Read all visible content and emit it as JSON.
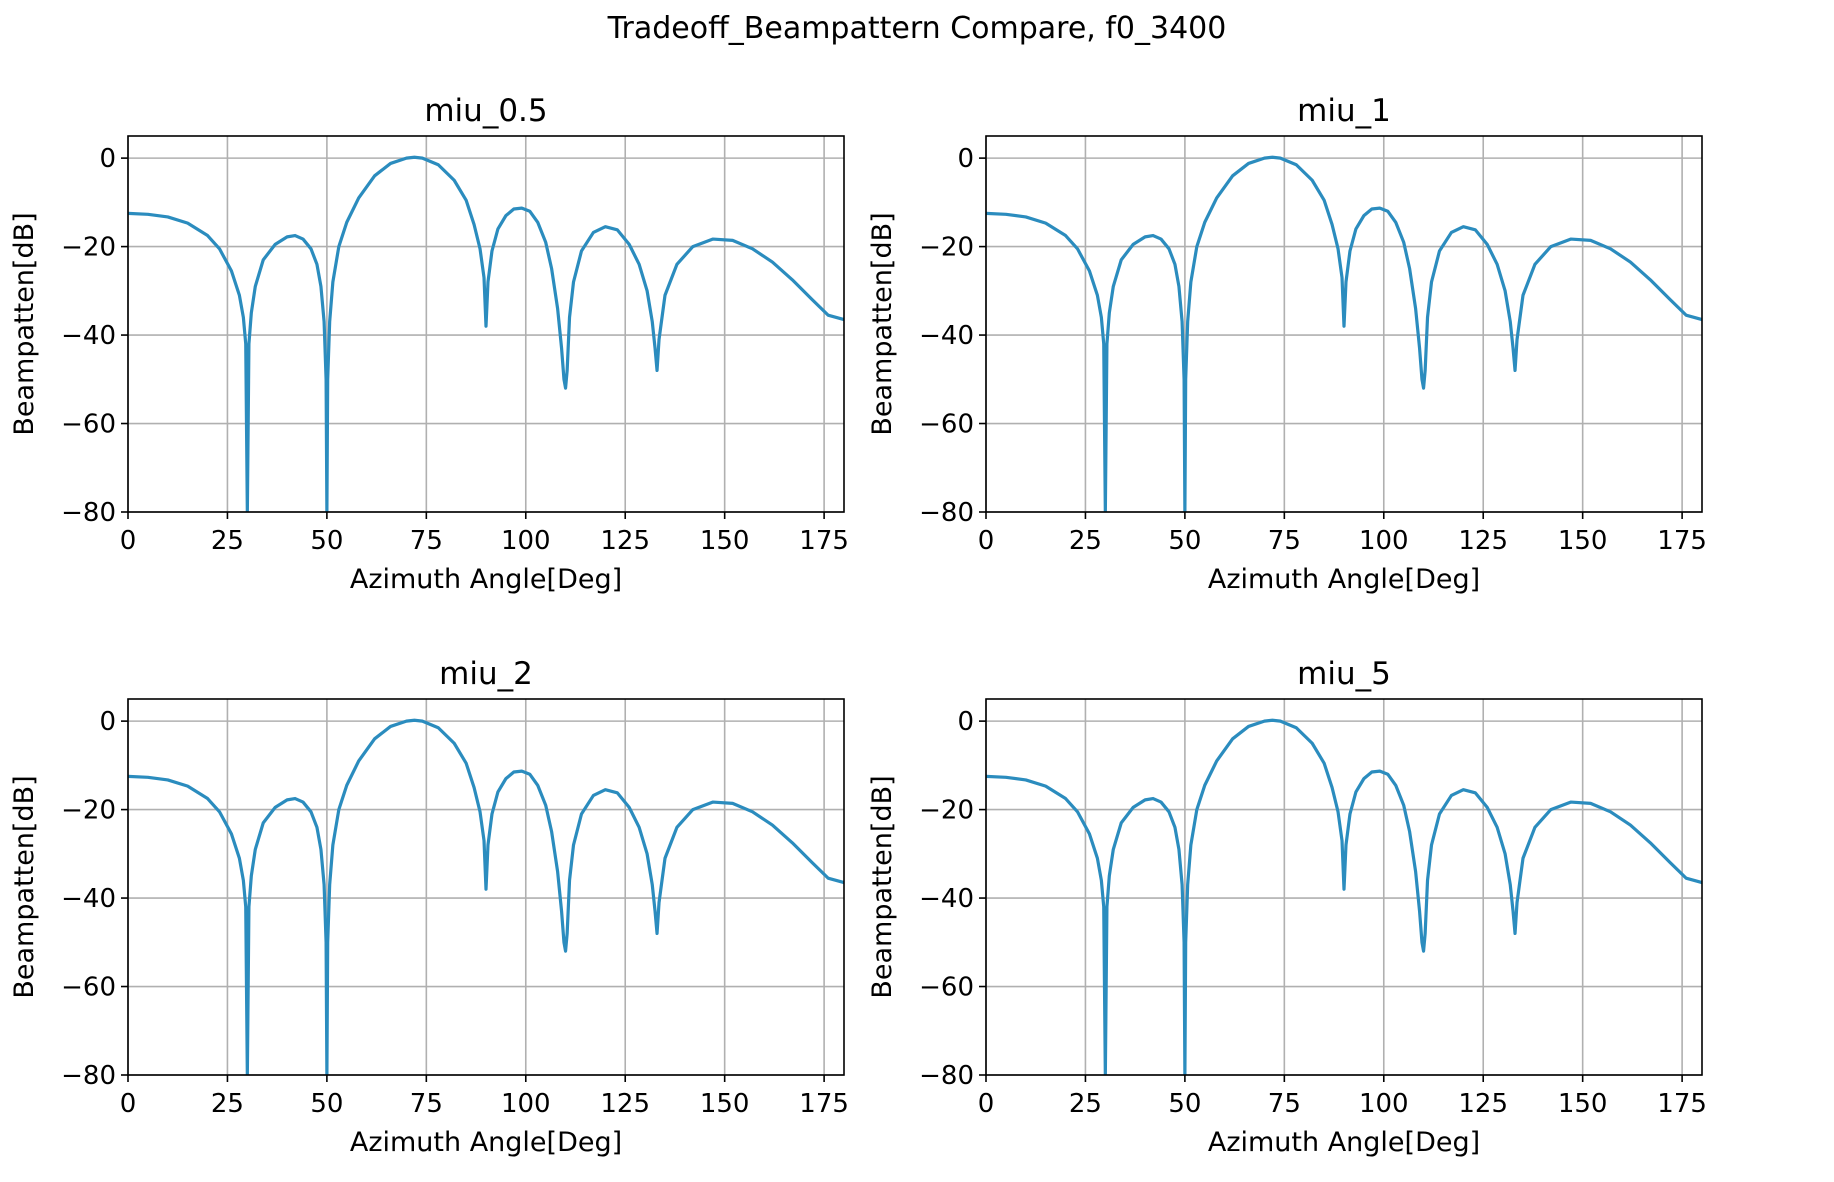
{
  "figure": {
    "title": "Tradeoff_Beampattern Compare, f0_3400"
  },
  "colors": {
    "line": "#2b8cbe",
    "grid": "#b0b0b0",
    "axes": "#000000"
  },
  "chart_data": [
    {
      "type": "line",
      "title": "miu_0.5",
      "xlabel": "Azimuth Angle[Deg]",
      "ylabel": "Beampatten[dB]",
      "xlim": [
        0,
        180
      ],
      "ylim": [
        -80,
        5
      ],
      "xticks": [
        0,
        25,
        50,
        75,
        100,
        125,
        150,
        175
      ],
      "yticks": [
        0,
        -20,
        -40,
        -60,
        -80
      ],
      "grid": true,
      "series": [
        {
          "x": [
            0,
            5,
            10,
            15,
            20,
            23,
            26,
            28,
            29,
            29.6,
            30,
            30.4,
            31,
            32,
            34,
            37,
            40,
            42,
            44,
            46,
            47.5,
            48.5,
            49.3,
            49.8,
            50,
            50.2,
            50.7,
            51.5,
            53,
            55,
            58,
            62,
            66,
            70,
            72,
            74,
            78,
            82,
            85,
            87,
            88.5,
            89.5,
            90,
            90.5,
            91.5,
            93,
            95,
            97,
            99,
            101,
            103,
            105,
            106.5,
            108,
            109,
            109.6,
            110,
            110.4,
            111,
            112,
            114,
            117,
            120,
            123,
            126,
            128.5,
            130.5,
            131.8,
            132.5,
            133,
            133.5,
            135,
            138,
            142,
            147,
            152,
            157,
            162,
            167,
            172,
            176,
            180
          ],
          "y": [
            -12.5,
            -12.7,
            -13.3,
            -14.7,
            -17.5,
            -20.5,
            -25.5,
            -31,
            -36,
            -42,
            -80,
            -42,
            -35,
            -29,
            -23,
            -19.5,
            -17.8,
            -17.5,
            -18.3,
            -20.5,
            -24,
            -29,
            -37,
            -50,
            -80,
            -50,
            -37,
            -28,
            -20,
            -14.5,
            -9,
            -4,
            -1.2,
            0,
            0.2,
            0,
            -1.5,
            -5,
            -9.5,
            -15,
            -20.5,
            -27,
            -38,
            -28,
            -21,
            -16,
            -13,
            -11.5,
            -11.3,
            -12,
            -14.5,
            -19,
            -25,
            -34,
            -43,
            -50,
            -52,
            -48,
            -36,
            -28,
            -21,
            -16.8,
            -15.5,
            -16.2,
            -19.5,
            -24,
            -30,
            -37,
            -43,
            -48,
            -41,
            -31,
            -24,
            -20,
            -18.3,
            -18.6,
            -20.5,
            -23.5,
            -27.5,
            -32,
            -35.5,
            -36.5
          ]
        }
      ]
    },
    {
      "type": "line",
      "title": "miu_1",
      "xlabel": "Azimuth Angle[Deg]",
      "ylabel": "Beampatten[dB]",
      "xlim": [
        0,
        180
      ],
      "ylim": [
        -80,
        5
      ],
      "xticks": [
        0,
        25,
        50,
        75,
        100,
        125,
        150,
        175
      ],
      "yticks": [
        0,
        -20,
        -40,
        -60,
        -80
      ],
      "grid": true,
      "series": [
        {
          "x": [
            0,
            5,
            10,
            15,
            20,
            23,
            26,
            28,
            29,
            29.6,
            30,
            30.4,
            31,
            32,
            34,
            37,
            40,
            42,
            44,
            46,
            47.5,
            48.5,
            49.3,
            49.8,
            50,
            50.2,
            50.7,
            51.5,
            53,
            55,
            58,
            62,
            66,
            70,
            72,
            74,
            78,
            82,
            85,
            87,
            88.5,
            89.5,
            90,
            90.5,
            91.5,
            93,
            95,
            97,
            99,
            101,
            103,
            105,
            106.5,
            108,
            109,
            109.6,
            110,
            110.4,
            111,
            112,
            114,
            117,
            120,
            123,
            126,
            128.5,
            130.5,
            131.8,
            132.5,
            133,
            133.5,
            135,
            138,
            142,
            147,
            152,
            157,
            162,
            167,
            172,
            176,
            180
          ],
          "y": [
            -12.5,
            -12.7,
            -13.3,
            -14.7,
            -17.5,
            -20.5,
            -25.5,
            -31,
            -36,
            -42,
            -80,
            -42,
            -35,
            -29,
            -23,
            -19.5,
            -17.8,
            -17.5,
            -18.3,
            -20.5,
            -24,
            -29,
            -37,
            -50,
            -80,
            -50,
            -37,
            -28,
            -20,
            -14.5,
            -9,
            -4,
            -1.2,
            0,
            0.2,
            0,
            -1.5,
            -5,
            -9.5,
            -15,
            -20.5,
            -27,
            -38,
            -28,
            -21,
            -16,
            -13,
            -11.5,
            -11.3,
            -12,
            -14.5,
            -19,
            -25,
            -34,
            -43,
            -50,
            -52,
            -48,
            -36,
            -28,
            -21,
            -16.8,
            -15.5,
            -16.2,
            -19.5,
            -24,
            -30,
            -37,
            -43,
            -48,
            -41,
            -31,
            -24,
            -20,
            -18.3,
            -18.6,
            -20.5,
            -23.5,
            -27.5,
            -32,
            -35.5,
            -36.5
          ]
        }
      ]
    },
    {
      "type": "line",
      "title": "miu_2",
      "xlabel": "Azimuth Angle[Deg]",
      "ylabel": "Beampatten[dB]",
      "xlim": [
        0,
        180
      ],
      "ylim": [
        -80,
        5
      ],
      "xticks": [
        0,
        25,
        50,
        75,
        100,
        125,
        150,
        175
      ],
      "yticks": [
        0,
        -20,
        -40,
        -60,
        -80
      ],
      "grid": true,
      "series": [
        {
          "x": [
            0,
            5,
            10,
            15,
            20,
            23,
            26,
            28,
            29,
            29.6,
            30,
            30.4,
            31,
            32,
            34,
            37,
            40,
            42,
            44,
            46,
            47.5,
            48.5,
            49.3,
            49.8,
            50,
            50.2,
            50.7,
            51.5,
            53,
            55,
            58,
            62,
            66,
            70,
            72,
            74,
            78,
            82,
            85,
            87,
            88.5,
            89.5,
            90,
            90.5,
            91.5,
            93,
            95,
            97,
            99,
            101,
            103,
            105,
            106.5,
            108,
            109,
            109.6,
            110,
            110.4,
            111,
            112,
            114,
            117,
            120,
            123,
            126,
            128.5,
            130.5,
            131.8,
            132.5,
            133,
            133.5,
            135,
            138,
            142,
            147,
            152,
            157,
            162,
            167,
            172,
            176,
            180
          ],
          "y": [
            -12.5,
            -12.7,
            -13.3,
            -14.7,
            -17.5,
            -20.5,
            -25.5,
            -31,
            -36,
            -42,
            -80,
            -42,
            -35,
            -29,
            -23,
            -19.5,
            -17.8,
            -17.5,
            -18.3,
            -20.5,
            -24,
            -29,
            -37,
            -50,
            -80,
            -50,
            -37,
            -28,
            -20,
            -14.5,
            -9,
            -4,
            -1.2,
            0,
            0.2,
            0,
            -1.5,
            -5,
            -9.5,
            -15,
            -20.5,
            -27,
            -38,
            -28,
            -21,
            -16,
            -13,
            -11.5,
            -11.3,
            -12,
            -14.5,
            -19,
            -25,
            -34,
            -43,
            -50,
            -52,
            -48,
            -36,
            -28,
            -21,
            -16.8,
            -15.5,
            -16.2,
            -19.5,
            -24,
            -30,
            -37,
            -43,
            -48,
            -41,
            -31,
            -24,
            -20,
            -18.3,
            -18.6,
            -20.5,
            -23.5,
            -27.5,
            -32,
            -35.5,
            -36.5
          ]
        }
      ]
    },
    {
      "type": "line",
      "title": "miu_5",
      "xlabel": "Azimuth Angle[Deg]",
      "ylabel": "Beampatten[dB]",
      "xlim": [
        0,
        180
      ],
      "ylim": [
        -80,
        5
      ],
      "xticks": [
        0,
        25,
        50,
        75,
        100,
        125,
        150,
        175
      ],
      "yticks": [
        0,
        -20,
        -40,
        -60,
        -80
      ],
      "grid": true,
      "series": [
        {
          "x": [
            0,
            5,
            10,
            15,
            20,
            23,
            26,
            28,
            29,
            29.6,
            30,
            30.4,
            31,
            32,
            34,
            37,
            40,
            42,
            44,
            46,
            47.5,
            48.5,
            49.3,
            49.8,
            50,
            50.2,
            50.7,
            51.5,
            53,
            55,
            58,
            62,
            66,
            70,
            72,
            74,
            78,
            82,
            85,
            87,
            88.5,
            89.5,
            90,
            90.5,
            91.5,
            93,
            95,
            97,
            99,
            101,
            103,
            105,
            106.5,
            108,
            109,
            109.6,
            110,
            110.4,
            111,
            112,
            114,
            117,
            120,
            123,
            126,
            128.5,
            130.5,
            131.8,
            132.5,
            133,
            133.5,
            135,
            138,
            142,
            147,
            152,
            157,
            162,
            167,
            172,
            176,
            180
          ],
          "y": [
            -12.5,
            -12.7,
            -13.3,
            -14.7,
            -17.5,
            -20.5,
            -25.5,
            -31,
            -36,
            -42,
            -80,
            -42,
            -35,
            -29,
            -23,
            -19.5,
            -17.8,
            -17.5,
            -18.3,
            -20.5,
            -24,
            -29,
            -37,
            -50,
            -80,
            -50,
            -37,
            -28,
            -20,
            -14.5,
            -9,
            -4,
            -1.2,
            0,
            0.2,
            0,
            -1.5,
            -5,
            -9.5,
            -15,
            -20.5,
            -27,
            -38,
            -28,
            -21,
            -16,
            -13,
            -11.5,
            -11.3,
            -12,
            -14.5,
            -19,
            -25,
            -34,
            -43,
            -50,
            -52,
            -48,
            -36,
            -28,
            -21,
            -16.8,
            -15.5,
            -16.2,
            -19.5,
            -24,
            -30,
            -37,
            -43,
            -48,
            -41,
            -31,
            -24,
            -20,
            -18.3,
            -18.6,
            -20.5,
            -23.5,
            -27.5,
            -32,
            -35.5,
            -36.5
          ]
        }
      ]
    }
  ]
}
